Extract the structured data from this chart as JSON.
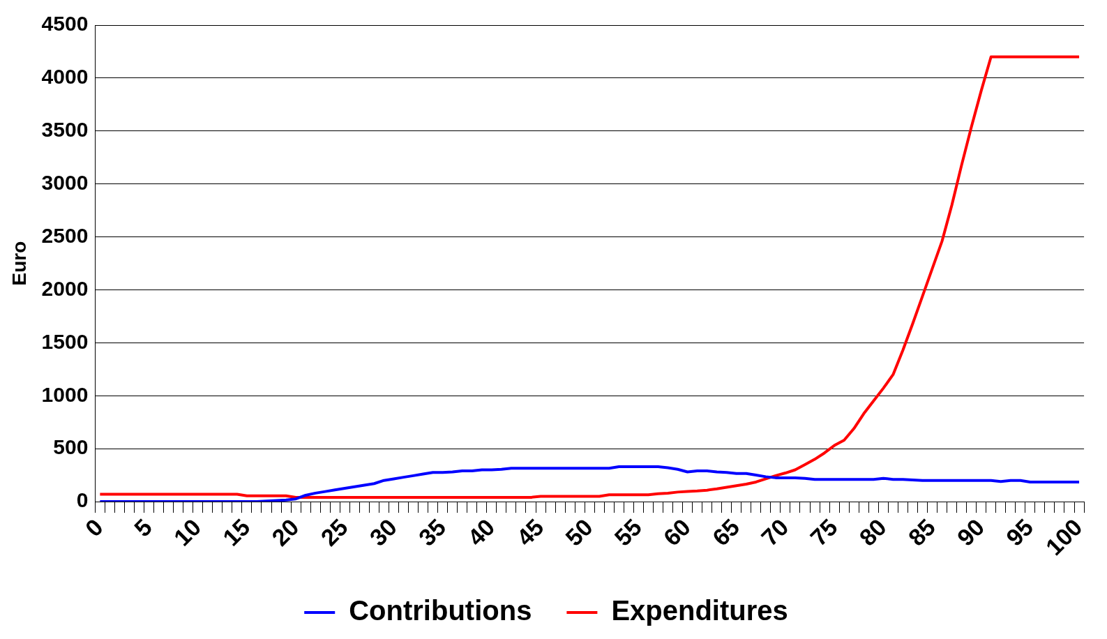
{
  "chart_data": {
    "type": "line",
    "ylabel": "Euro",
    "categories": [
      "0",
      null,
      null,
      null,
      null,
      "5",
      null,
      null,
      null,
      null,
      "10",
      null,
      null,
      null,
      null,
      "15",
      null,
      null,
      null,
      null,
      "20",
      null,
      null,
      null,
      null,
      "25",
      null,
      null,
      null,
      null,
      "30",
      null,
      null,
      null,
      null,
      "35",
      null,
      null,
      null,
      null,
      "40",
      null,
      null,
      null,
      null,
      "45",
      null,
      null,
      null,
      null,
      "50",
      null,
      null,
      null,
      null,
      "55",
      null,
      null,
      null,
      null,
      "60",
      null,
      null,
      null,
      null,
      "65",
      null,
      null,
      null,
      null,
      "70",
      null,
      null,
      null,
      null,
      "75",
      null,
      null,
      null,
      null,
      "80",
      null,
      null,
      null,
      null,
      "85",
      null,
      null,
      null,
      null,
      "90",
      null,
      null,
      null,
      null,
      "95",
      null,
      null,
      null,
      null,
      "100"
    ],
    "series": [
      {
        "name": "Contributions",
        "color": "#0000ff",
        "values": [
          0,
          0,
          0,
          0,
          0,
          0,
          0,
          0,
          0,
          0,
          0,
          0,
          0,
          0,
          0,
          0,
          0,
          5,
          10,
          15,
          25,
          60,
          80,
          95,
          110,
          125,
          140,
          155,
          170,
          200,
          215,
          230,
          245,
          260,
          275,
          275,
          280,
          290,
          290,
          300,
          300,
          305,
          315,
          315,
          315,
          315,
          315,
          315,
          315,
          315,
          315,
          315,
          315,
          330,
          330,
          330,
          330,
          330,
          320,
          305,
          280,
          290,
          290,
          280,
          275,
          265,
          265,
          250,
          235,
          225,
          225,
          225,
          220,
          210,
          210,
          210,
          210,
          210,
          210,
          210,
          220,
          210,
          210,
          205,
          200,
          200,
          200,
          200,
          200,
          200,
          200,
          200,
          190,
          200,
          200,
          185,
          185,
          185,
          185,
          185,
          185
        ]
      },
      {
        "name": "Expenditures",
        "color": "#ff0000",
        "values": [
          70,
          70,
          70,
          70,
          70,
          70,
          70,
          70,
          70,
          70,
          70,
          70,
          70,
          70,
          70,
          55,
          55,
          55,
          55,
          55,
          40,
          40,
          40,
          40,
          40,
          40,
          40,
          40,
          40,
          40,
          40,
          40,
          40,
          40,
          40,
          40,
          40,
          40,
          40,
          40,
          40,
          40,
          40,
          40,
          40,
          50,
          50,
          50,
          50,
          50,
          50,
          50,
          65,
          65,
          65,
          65,
          65,
          75,
          80,
          90,
          95,
          100,
          108,
          120,
          135,
          150,
          165,
          185,
          215,
          245,
          270,
          300,
          350,
          400,
          460,
          530,
          580,
          690,
          830,
          950,
          1070,
          1200,
          1430,
          1680,
          1940,
          2200,
          2460,
          2800,
          3180,
          3540,
          3880,
          4200,
          4200,
          4200,
          4200,
          4200,
          4200,
          4200,
          4200,
          4200,
          4200
        ]
      }
    ],
    "ylim": [
      0,
      4500
    ],
    "yticks": [
      0,
      500,
      1000,
      1500,
      2000,
      2500,
      3000,
      3500,
      4000,
      4500
    ],
    "grid": "y",
    "legend": "bottom",
    "marker": "none",
    "line_style": "solid"
  }
}
